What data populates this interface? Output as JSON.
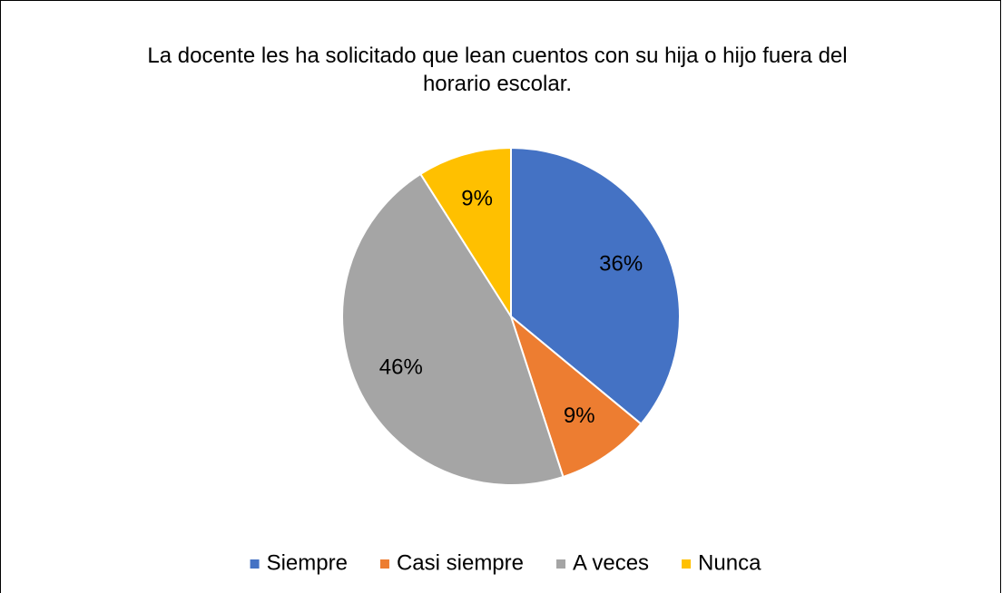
{
  "chart_data": {
    "type": "pie",
    "title": "La docente les ha solicitado que lean cuentos con su hija o hijo fuera del horario escolar.",
    "categories": [
      "Siempre",
      "Casi siempre",
      "A veces",
      "Nunca"
    ],
    "values": [
      36,
      9,
      46,
      9
    ],
    "value_labels": [
      "36%",
      "9%",
      "46%",
      "9%"
    ],
    "colors": [
      "#4472c4",
      "#ed7d31",
      "#a5a5a5",
      "#ffc000"
    ],
    "legend": "bottom"
  }
}
